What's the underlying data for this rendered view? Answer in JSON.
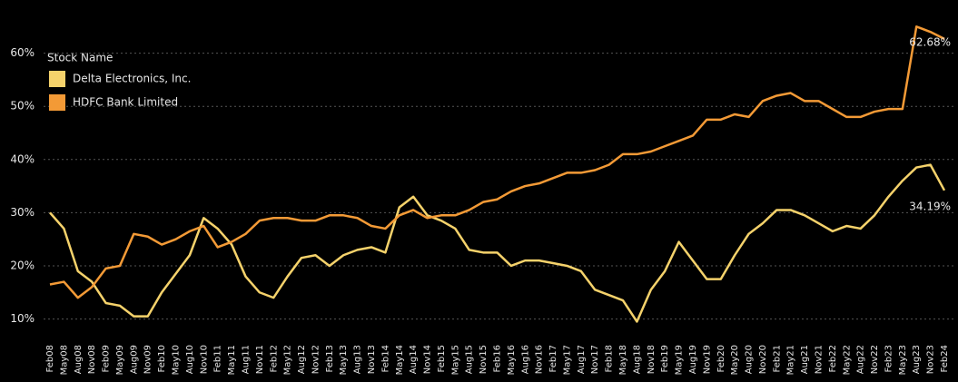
{
  "chart_data": {
    "type": "line",
    "legend_title": "Stock Name",
    "legend": "top-left",
    "grid": true,
    "categories": [
      "Feb08",
      "May08",
      "Aug08",
      "Nov08",
      "Feb09",
      "May09",
      "Aug09",
      "Nov09",
      "Feb10",
      "May10",
      "Aug10",
      "Nov10",
      "Feb11",
      "May11",
      "Aug11",
      "Nov11",
      "Feb12",
      "May12",
      "Aug12",
      "Nov12",
      "Feb13",
      "May13",
      "Aug13",
      "Nov13",
      "Feb14",
      "May14",
      "Aug14",
      "Nov14",
      "Feb15",
      "May15",
      "Aug15",
      "Nov15",
      "Feb16",
      "May16",
      "Aug16",
      "Nov16",
      "Feb17",
      "May17",
      "Aug17",
      "Nov17",
      "Feb18",
      "May18",
      "Aug18",
      "Nov18",
      "Feb19",
      "May19",
      "Aug19",
      "Nov19",
      "Feb20",
      "May20",
      "Aug20",
      "Nov20",
      "Feb21",
      "May21",
      "Aug21",
      "Nov21",
      "Feb22",
      "May22",
      "Aug22",
      "Nov22",
      "Feb23",
      "May23",
      "Aug23",
      "Nov23",
      "Feb24"
    ],
    "ylim": [
      6,
      70
    ],
    "yticks": [
      {
        "value": 10,
        "label": "10%"
      },
      {
        "value": 20,
        "label": "20%"
      },
      {
        "value": 30,
        "label": "30%"
      },
      {
        "value": 40,
        "label": "40%"
      },
      {
        "value": 50,
        "label": "50%"
      },
      {
        "value": 60,
        "label": "60%"
      }
    ],
    "series": [
      {
        "name": "Delta Electronics, Inc.",
        "color": "#f5d26b",
        "values": [
          30,
          27,
          19,
          17,
          13,
          12.5,
          10.5,
          10.5,
          15,
          18.5,
          22,
          29,
          27,
          24,
          18,
          15,
          14,
          18,
          21.5,
          22,
          20,
          22,
          23,
          23.5,
          22.5,
          31,
          33,
          29.5,
          28.5,
          27,
          23,
          22.5,
          22.5,
          20,
          21,
          21,
          20.5,
          20,
          19,
          15.5,
          14.5,
          13.5,
          9.5,
          15.5,
          19,
          24.5,
          21,
          17.5,
          17.5,
          22,
          26,
          28,
          30.5,
          30.5,
          29.5,
          28,
          26.5,
          27.5,
          27,
          29.5,
          33,
          36,
          38.5,
          39,
          34.19
        ],
        "value_labels": [
          null,
          null,
          null,
          null,
          null,
          null,
          null,
          null,
          null,
          null,
          null,
          null,
          null,
          null,
          null,
          null,
          null,
          null,
          null,
          null,
          null,
          null,
          null,
          null,
          null,
          null,
          null,
          null,
          null,
          null,
          null,
          null,
          null,
          null,
          null,
          null,
          null,
          null,
          null,
          null,
          null,
          null,
          null,
          null,
          null,
          null,
          null,
          null,
          null,
          null,
          null,
          null,
          null,
          null,
          null,
          null,
          null,
          null,
          null,
          null,
          null,
          null,
          null,
          null,
          "34.19%"
        ]
      },
      {
        "name": "HDFC Bank Limited",
        "color": "#f39a36",
        "values": [
          16.5,
          17,
          14,
          16,
          19.5,
          20,
          26,
          25.5,
          24,
          25,
          26.5,
          27.5,
          23.5,
          24.5,
          26,
          28.5,
          29,
          29,
          28.5,
          28.5,
          29.5,
          29.5,
          29,
          27.5,
          27,
          29.5,
          30.5,
          29,
          29.5,
          29.5,
          30.5,
          32,
          32.5,
          34,
          35,
          35.5,
          36.5,
          37.5,
          37.5,
          38,
          39,
          41,
          41,
          41.5,
          42.5,
          43.5,
          44.5,
          47.5,
          47.5,
          48.5,
          48,
          51,
          52,
          52.5,
          51,
          51,
          49.5,
          48,
          48,
          49,
          49.5,
          49.5,
          65,
          64,
          62.68
        ],
        "value_labels": [
          null,
          null,
          null,
          null,
          null,
          null,
          null,
          null,
          null,
          null,
          null,
          null,
          null,
          null,
          null,
          null,
          null,
          null,
          null,
          null,
          null,
          null,
          null,
          null,
          null,
          null,
          null,
          null,
          null,
          null,
          null,
          null,
          null,
          null,
          null,
          null,
          null,
          null,
          null,
          null,
          null,
          null,
          null,
          null,
          null,
          null,
          null,
          null,
          null,
          null,
          null,
          null,
          null,
          null,
          null,
          null,
          null,
          null,
          null,
          null,
          null,
          null,
          null,
          null,
          "62.68%"
        ]
      }
    ]
  }
}
